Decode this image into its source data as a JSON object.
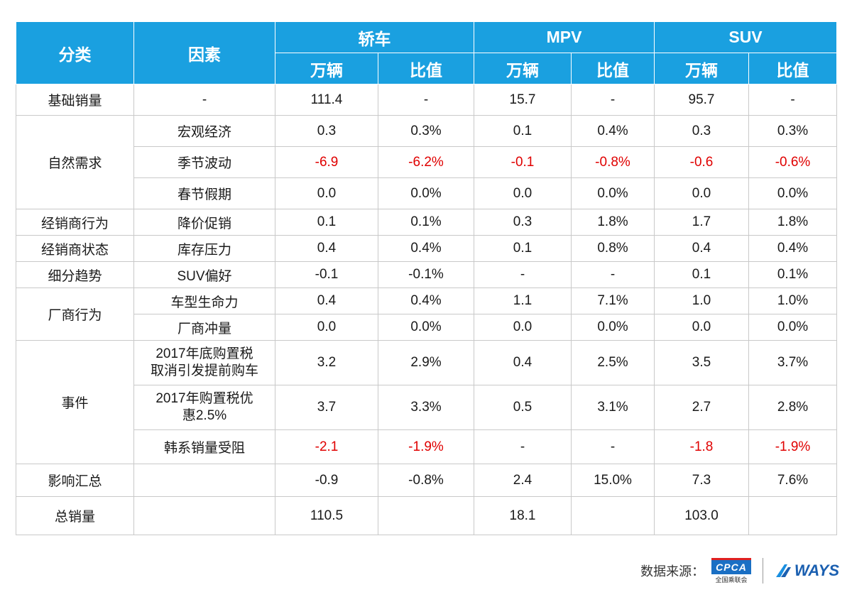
{
  "header": {
    "category": "分类",
    "factor": "因素",
    "groups": [
      "轿车",
      "MPV",
      "SUV"
    ],
    "sub": [
      "万辆",
      "比值",
      "万辆",
      "比值",
      "万辆",
      "比值"
    ]
  },
  "rows": {
    "base": {
      "category": "基础销量",
      "factor": "-",
      "values": [
        "111.4",
        "-",
        "15.7",
        "-",
        "95.7",
        "-"
      ]
    },
    "natural": {
      "category": "自然需求",
      "items": [
        {
          "factor": "宏观经济",
          "values": [
            "0.3",
            "0.3%",
            "0.1",
            "0.4%",
            "0.3",
            "0.3%"
          ]
        },
        {
          "factor": "季节波动",
          "values": [
            "-6.9",
            "-6.2%",
            "-0.1",
            "-0.8%",
            "-0.6",
            "-0.6%"
          ]
        },
        {
          "factor": "春节假期",
          "values": [
            "0.0",
            "0.0%",
            "0.0",
            "0.0%",
            "0.0",
            "0.0%"
          ]
        }
      ]
    },
    "dealer_behavior": {
      "category": "经销商行为",
      "factor": "降价促销",
      "values": [
        "0.1",
        "0.1%",
        "0.3",
        "1.8%",
        "1.7",
        "1.8%"
      ]
    },
    "dealer_state": {
      "category": "经销商状态",
      "factor": "库存压力",
      "values": [
        "0.4",
        "0.4%",
        "0.1",
        "0.8%",
        "0.4",
        "0.4%"
      ]
    },
    "segment": {
      "category": "细分趋势",
      "factor": "SUV偏好",
      "values": [
        "-0.1",
        "-0.1%",
        "-",
        "-",
        "0.1",
        "0.1%"
      ]
    },
    "maker": {
      "category": "厂商行为",
      "items": [
        {
          "factor": "车型生命力",
          "values": [
            "0.4",
            "0.4%",
            "1.1",
            "7.1%",
            "1.0",
            "1.0%"
          ]
        },
        {
          "factor": "厂商冲量",
          "values": [
            "0.0",
            "0.0%",
            "0.0",
            "0.0%",
            "0.0",
            "0.0%"
          ]
        }
      ]
    },
    "events": {
      "category": "事件",
      "items": [
        {
          "factor_line1": "2017年底购置税",
          "factor_line2": "取消引发提前购车",
          "values": [
            "3.2",
            "2.9%",
            "0.4",
            "2.5%",
            "3.5",
            "3.7%"
          ]
        },
        {
          "factor_line1": "2017年购置税优",
          "factor_line2": "惠2.5%",
          "values": [
            "3.7",
            "3.3%",
            "0.5",
            "3.1%",
            "2.7",
            "2.8%"
          ]
        },
        {
          "factor": "韩系销量受阻",
          "values": [
            "-2.1",
            "-1.9%",
            "-",
            "-",
            "-1.8",
            "-1.9%"
          ]
        }
      ]
    },
    "impact": {
      "category": "影响汇总",
      "values": [
        "-0.9",
        "-0.8%",
        "2.4",
        "15.0%",
        "7.3",
        "7.6%"
      ]
    },
    "total": {
      "category": "总销量",
      "values": [
        "110.5",
        "",
        "18.1",
        "",
        "103.0",
        ""
      ]
    }
  },
  "footer": {
    "source_label": "数据来源：",
    "cpca_logo": "CPCA",
    "cpca_sub": "全国乘联会",
    "ways_logo": "WAYS"
  },
  "colors": {
    "header_bg": "#1aa0e0",
    "negative": "#e00000"
  }
}
